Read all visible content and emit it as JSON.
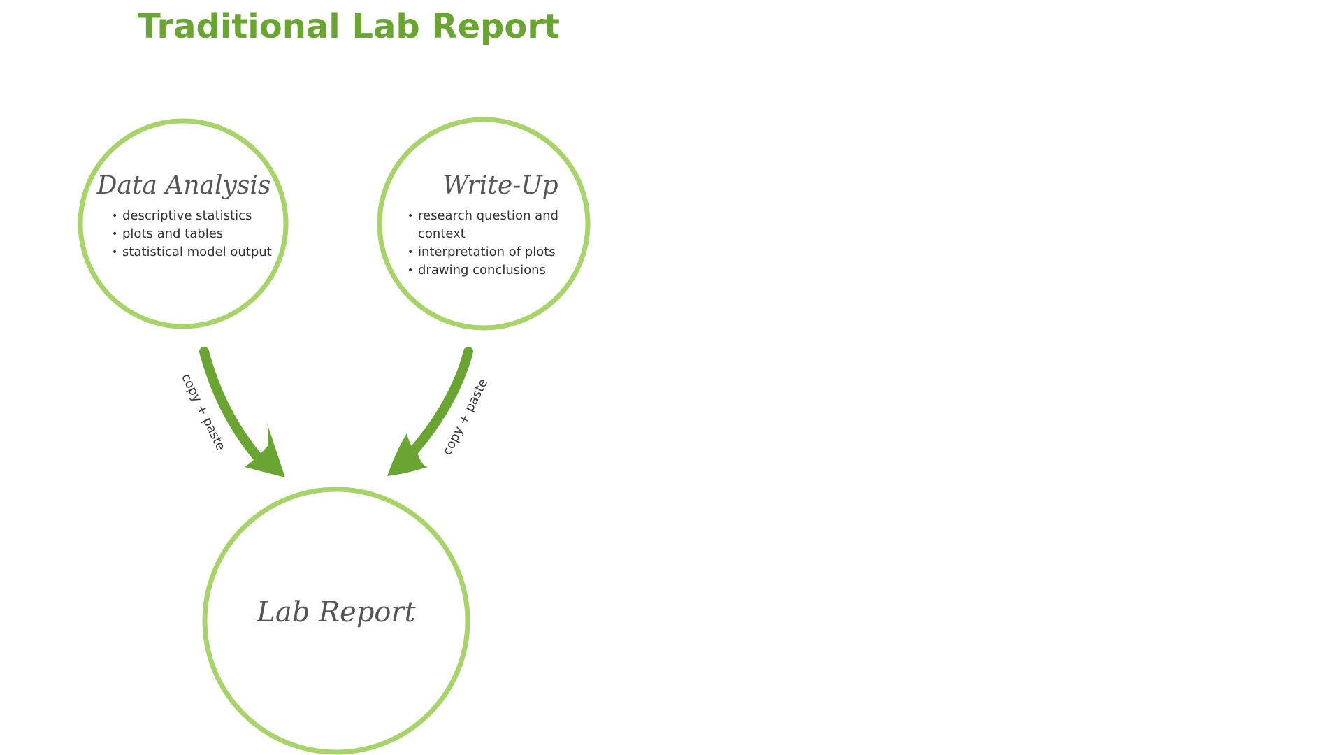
{
  "title": "Traditional Lab Report",
  "colors": {
    "title": "#6aa534",
    "circle_stroke": "#a7d36a",
    "arrow": "#6aa534",
    "text": "#333333",
    "node_title": "#555555"
  },
  "nodes": {
    "data_analysis": {
      "title": "Data Analysis",
      "items": [
        "descriptive statistics",
        "plots and tables",
        "statistical model output"
      ]
    },
    "write_up": {
      "title": "Write-Up",
      "items": [
        "research question and context",
        "interpretation of plots",
        "drawing conclusions"
      ]
    },
    "lab_report": {
      "title": "Lab Report"
    }
  },
  "edges": [
    {
      "from": "data_analysis",
      "to": "lab_report",
      "label": "copy + paste"
    },
    {
      "from": "write_up",
      "to": "lab_report",
      "label": "copy + paste"
    }
  ]
}
